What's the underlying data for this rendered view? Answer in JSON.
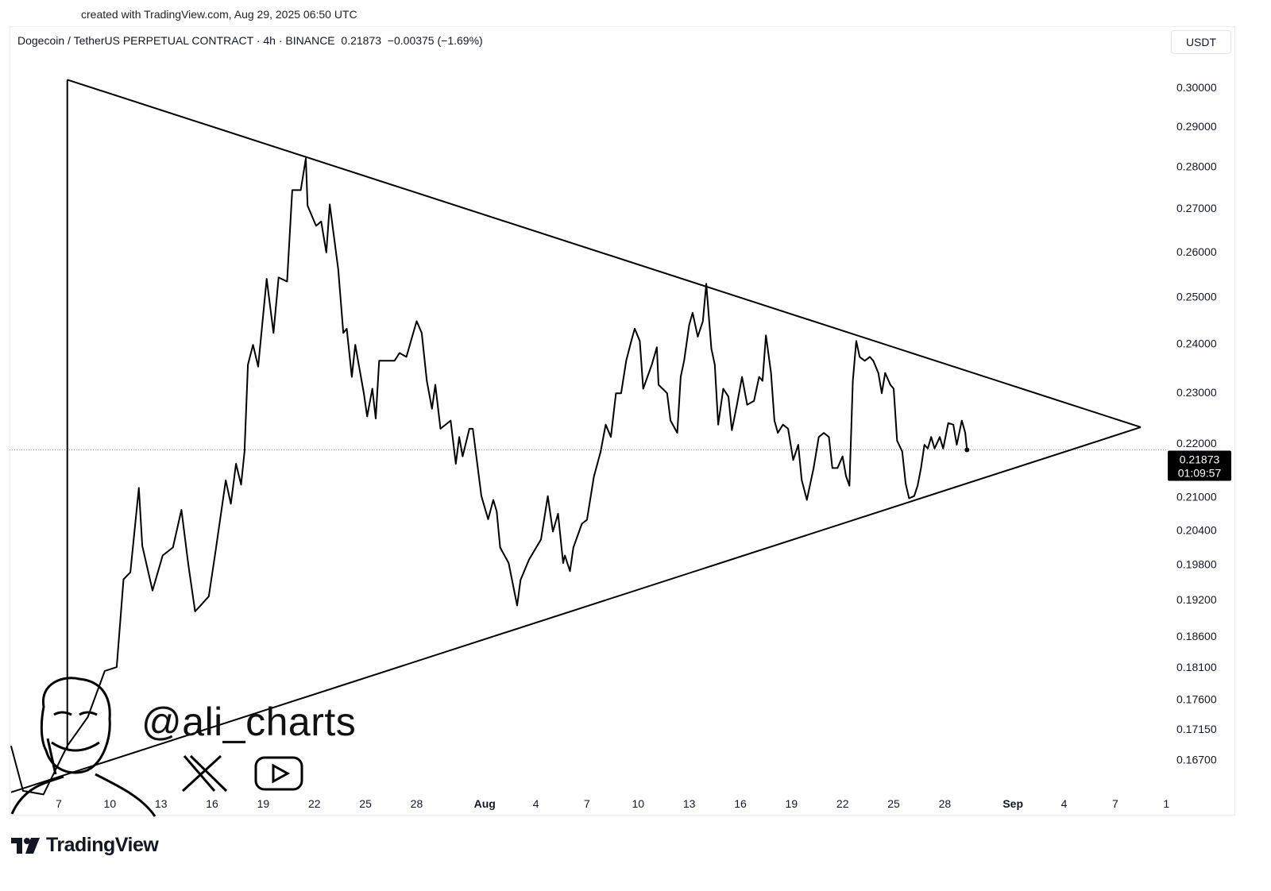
{
  "created_label": "created with TradingView.com, Aug 29, 2025 06:50 UTC",
  "symbol_line": "Dogecoin / TetherUS PERPETUAL CONTRACT · 4h · BINANCE  0.21873  −0.00375 (−1.69%)",
  "currency": "USDT",
  "watermark": {
    "handle": "@ali_charts",
    "icons": [
      "x-logo-icon",
      "youtube-icon"
    ],
    "avatar": "caricature-face-icon"
  },
  "brand": "TradingView",
  "price_tag": {
    "price": "0.21873",
    "countdown": "01:09:57"
  },
  "colors": {
    "line": "#000000",
    "background": "#ffffff",
    "tag_bg": "#000000",
    "tag_text": "#ffffff"
  },
  "chart_data": {
    "type": "line",
    "title": "Dogecoin / TetherUS PERPETUAL CONTRACT · 4h · BINANCE",
    "x_unit": "days since Jul 7, 2025",
    "y_scale": "log",
    "ylim": [
      0.162,
      0.304
    ],
    "xlim": [
      -2.9,
      66.5
    ],
    "y_ticks": [
      "0.30000",
      "0.29000",
      "0.28000",
      "0.27000",
      "0.26000",
      "0.25000",
      "0.24000",
      "0.23000",
      "0.22000",
      "0.21000",
      "0.20400",
      "0.19800",
      "0.19200",
      "0.18600",
      "0.18100",
      "0.17600",
      "0.17150",
      "0.16700"
    ],
    "x_ticks": [
      {
        "label": "7",
        "day": 0
      },
      {
        "label": "10",
        "day": 3
      },
      {
        "label": "13",
        "day": 6
      },
      {
        "label": "16",
        "day": 9
      },
      {
        "label": "19",
        "day": 12
      },
      {
        "label": "22",
        "day": 15
      },
      {
        "label": "25",
        "day": 18
      },
      {
        "label": "28",
        "day": 21
      },
      {
        "label": "Aug",
        "day": 25,
        "bold": true
      },
      {
        "label": "4",
        "day": 28
      },
      {
        "label": "7",
        "day": 31
      },
      {
        "label": "10",
        "day": 34
      },
      {
        "label": "13",
        "day": 37
      },
      {
        "label": "16",
        "day": 40
      },
      {
        "label": "19",
        "day": 43
      },
      {
        "label": "22",
        "day": 46
      },
      {
        "label": "25",
        "day": 49
      },
      {
        "label": "28",
        "day": 52
      },
      {
        "label": "Sep",
        "day": 56,
        "bold": true
      },
      {
        "label": "4",
        "day": 59
      },
      {
        "label": "7",
        "day": 62
      },
      {
        "label": "1",
        "day": 65
      }
    ],
    "last_price": 0.21873,
    "series": [
      {
        "name": "DOGEUSDT.P 4h close",
        "points": [
          [
            -2.8,
            0.169
          ],
          [
            -2.1,
            0.1625
          ],
          [
            -0.9,
            0.162
          ],
          [
            0.5,
            0.169
          ],
          [
            1.7,
            0.1733
          ],
          [
            2.7,
            0.1804
          ],
          [
            3.4,
            0.181
          ],
          [
            3.8,
            0.1954
          ],
          [
            4.2,
            0.1966
          ],
          [
            4.7,
            0.2116
          ],
          [
            4.9,
            0.2012
          ],
          [
            5.5,
            0.1935
          ],
          [
            6.1,
            0.1995
          ],
          [
            6.7,
            0.2009
          ],
          [
            7.2,
            0.2076
          ],
          [
            7.6,
            0.198
          ],
          [
            8.0,
            0.19
          ],
          [
            8.8,
            0.1925
          ],
          [
            9.2,
            0.2002
          ],
          [
            9.8,
            0.213
          ],
          [
            10.1,
            0.2087
          ],
          [
            10.4,
            0.2161
          ],
          [
            10.7,
            0.2122
          ],
          [
            10.9,
            0.2184
          ],
          [
            11.1,
            0.2356
          ],
          [
            11.4,
            0.2397
          ],
          [
            11.7,
            0.2352
          ],
          [
            12.2,
            0.2539
          ],
          [
            12.6,
            0.2422
          ],
          [
            12.9,
            0.2542
          ],
          [
            13.4,
            0.2533
          ],
          [
            13.7,
            0.2743
          ],
          [
            14.2,
            0.2743
          ],
          [
            14.5,
            0.282
          ],
          [
            14.6,
            0.2706
          ],
          [
            15.1,
            0.2659
          ],
          [
            15.4,
            0.2669
          ],
          [
            15.7,
            0.2598
          ],
          [
            15.9,
            0.2709
          ],
          [
            16.4,
            0.256
          ],
          [
            16.7,
            0.2422
          ],
          [
            16.9,
            0.2431
          ],
          [
            17.2,
            0.2331
          ],
          [
            17.4,
            0.2397
          ],
          [
            17.9,
            0.2298
          ],
          [
            18.1,
            0.2252
          ],
          [
            18.4,
            0.2307
          ],
          [
            18.6,
            0.2248
          ],
          [
            18.8,
            0.2364
          ],
          [
            19.7,
            0.2364
          ],
          [
            20.0,
            0.238
          ],
          [
            20.4,
            0.2372
          ],
          [
            21.0,
            0.2447
          ],
          [
            21.3,
            0.2422
          ],
          [
            21.6,
            0.2323
          ],
          [
            21.9,
            0.2267
          ],
          [
            22.1,
            0.2315
          ],
          [
            22.4,
            0.2228
          ],
          [
            23.0,
            0.2244
          ],
          [
            23.3,
            0.2161
          ],
          [
            23.5,
            0.2212
          ],
          [
            23.7,
            0.2175
          ],
          [
            24.1,
            0.2228
          ],
          [
            24.3,
            0.2228
          ],
          [
            24.8,
            0.2101
          ],
          [
            25.2,
            0.2059
          ],
          [
            25.5,
            0.2094
          ],
          [
            25.7,
            0.2073
          ],
          [
            25.9,
            0.2009
          ],
          [
            26.4,
            0.1982
          ],
          [
            26.9,
            0.191
          ],
          [
            27.1,
            0.1953
          ],
          [
            27.6,
            0.1988
          ],
          [
            28.3,
            0.2023
          ],
          [
            28.7,
            0.2101
          ],
          [
            29.0,
            0.2037
          ],
          [
            29.3,
            0.2069
          ],
          [
            29.6,
            0.1982
          ],
          [
            29.7,
            0.1995
          ],
          [
            30.0,
            0.1968
          ],
          [
            30.2,
            0.2009
          ],
          [
            30.7,
            0.2051
          ],
          [
            31.0,
            0.2058
          ],
          [
            31.4,
            0.2136
          ],
          [
            31.8,
            0.2184
          ],
          [
            32.1,
            0.2236
          ],
          [
            32.4,
            0.2212
          ],
          [
            32.7,
            0.2298
          ],
          [
            33.0,
            0.2298
          ],
          [
            33.3,
            0.2364
          ],
          [
            33.6,
            0.2405
          ],
          [
            33.8,
            0.2431
          ],
          [
            34.1,
            0.2405
          ],
          [
            34.3,
            0.2307
          ],
          [
            34.8,
            0.2356
          ],
          [
            35.1,
            0.2392
          ],
          [
            35.2,
            0.2315
          ],
          [
            35.7,
            0.2298
          ],
          [
            35.9,
            0.2244
          ],
          [
            36.3,
            0.222
          ],
          [
            36.5,
            0.2331
          ],
          [
            36.7,
            0.2364
          ],
          [
            37.0,
            0.2439
          ],
          [
            37.2,
            0.2465
          ],
          [
            37.5,
            0.2414
          ],
          [
            37.8,
            0.2447
          ],
          [
            38.0,
            0.2528
          ],
          [
            38.3,
            0.2389
          ],
          [
            38.5,
            0.2356
          ],
          [
            38.7,
            0.2236
          ],
          [
            39.0,
            0.2307
          ],
          [
            39.3,
            0.2291
          ],
          [
            39.5,
            0.2225
          ],
          [
            39.8,
            0.2275
          ],
          [
            40.1,
            0.2331
          ],
          [
            40.4,
            0.2275
          ],
          [
            40.8,
            0.2283
          ],
          [
            41.1,
            0.2331
          ],
          [
            41.3,
            0.2323
          ],
          [
            41.5,
            0.2417
          ],
          [
            41.8,
            0.2339
          ],
          [
            42.0,
            0.2244
          ],
          [
            42.2,
            0.222
          ],
          [
            42.5,
            0.2236
          ],
          [
            42.8,
            0.2228
          ],
          [
            43.1,
            0.2168
          ],
          [
            43.4,
            0.2197
          ],
          [
            43.6,
            0.2131
          ],
          [
            43.9,
            0.2094
          ],
          [
            44.3,
            0.2153
          ],
          [
            44.6,
            0.2212
          ],
          [
            44.9,
            0.222
          ],
          [
            45.2,
            0.2212
          ],
          [
            45.4,
            0.2153
          ],
          [
            45.7,
            0.2153
          ],
          [
            46.0,
            0.2175
          ],
          [
            46.2,
            0.2138
          ],
          [
            46.4,
            0.212
          ],
          [
            46.6,
            0.2323
          ],
          [
            46.8,
            0.2405
          ],
          [
            47.0,
            0.2372
          ],
          [
            47.3,
            0.2364
          ],
          [
            47.6,
            0.2372
          ],
          [
            47.8,
            0.2364
          ],
          [
            48.1,
            0.2339
          ],
          [
            48.3,
            0.2298
          ],
          [
            48.5,
            0.2339
          ],
          [
            48.8,
            0.2315
          ],
          [
            49.0,
            0.2307
          ],
          [
            49.2,
            0.2205
          ],
          [
            49.5,
            0.2184
          ],
          [
            49.7,
            0.2124
          ],
          [
            49.9,
            0.2097
          ],
          [
            50.2,
            0.2101
          ],
          [
            50.4,
            0.212
          ],
          [
            50.6,
            0.2153
          ],
          [
            50.8,
            0.2197
          ],
          [
            51.0,
            0.219
          ],
          [
            51.2,
            0.2212
          ],
          [
            51.4,
            0.219
          ],
          [
            51.7,
            0.2212
          ],
          [
            51.9,
            0.219
          ],
          [
            52.2,
            0.2239
          ],
          [
            52.5,
            0.2236
          ],
          [
            52.7,
            0.2197
          ],
          [
            53.0,
            0.2244
          ],
          [
            53.2,
            0.222
          ],
          [
            53.3,
            0.21873
          ]
        ]
      }
    ],
    "annotations": [
      {
        "name": "upper-trendline",
        "from": [
          0.5,
          0.302
        ],
        "to": [
          63.5,
          0.2231
        ]
      },
      {
        "name": "lower-trendline",
        "from": [
          -2.8,
          0.1623
        ],
        "to": [
          63.5,
          0.2231
        ]
      },
      {
        "name": "pole-line",
        "from": [
          0.5,
          0.302
        ],
        "to": [
          0.5,
          0.1685
        ]
      }
    ]
  }
}
